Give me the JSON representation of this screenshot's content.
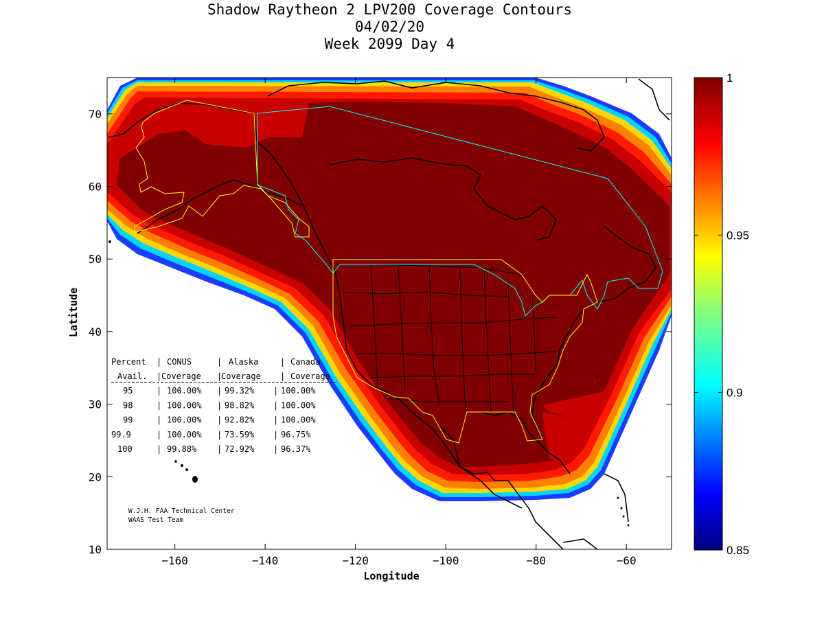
{
  "title_lines": [
    "Shadow Raytheon 2 LPV200 Coverage Contours",
    "04/02/20",
    "Week 2099 Day 4"
  ],
  "x_axis": {
    "label": "Longitude",
    "ticks": [
      -160,
      -140,
      -120,
      -100,
      -80,
      -60
    ],
    "range": [
      -175,
      -50
    ]
  },
  "y_axis": {
    "label": "Latitude",
    "ticks": [
      10,
      20,
      30,
      40,
      50,
      60,
      70
    ],
    "range": [
      10,
      75
    ]
  },
  "colorbar": {
    "ticks": [
      "1",
      "0.95",
      "0.9",
      "0.85"
    ],
    "range": [
      0.85,
      1
    ],
    "colormap": "jet"
  },
  "coverage_table": {
    "header1": [
      "Percent",
      "CONUS",
      "Alaska",
      "Canada"
    ],
    "header2": [
      "Avail.",
      "Coverage",
      "Coverage",
      "Coverage"
    ],
    "rows": [
      [
        "95",
        "100.00%",
        "99.32%",
        "100.00%"
      ],
      [
        "98",
        "100.00%",
        "98.82%",
        "100.00%"
      ],
      [
        "99",
        "100.00%",
        "92.82%",
        "100.00%"
      ],
      [
        "99.9",
        "100.00%",
        "73.59%",
        "96.75%"
      ],
      [
        "100",
        "99.88%",
        "72.92%",
        "96.37%"
      ]
    ]
  },
  "credit": [
    "W.J.H. FAA Technical Center",
    "WAAS Test Team"
  ],
  "colors": {
    "high": "#800000",
    "red": "#ff1a00",
    "orange": "#ff8a00",
    "yellow": "#ffdd00",
    "cyan": "#00e0ff",
    "blue": "#0040ff",
    "service_volume_conus_alaska": "#ffff00",
    "service_volume_canada": "#00ffff"
  }
}
